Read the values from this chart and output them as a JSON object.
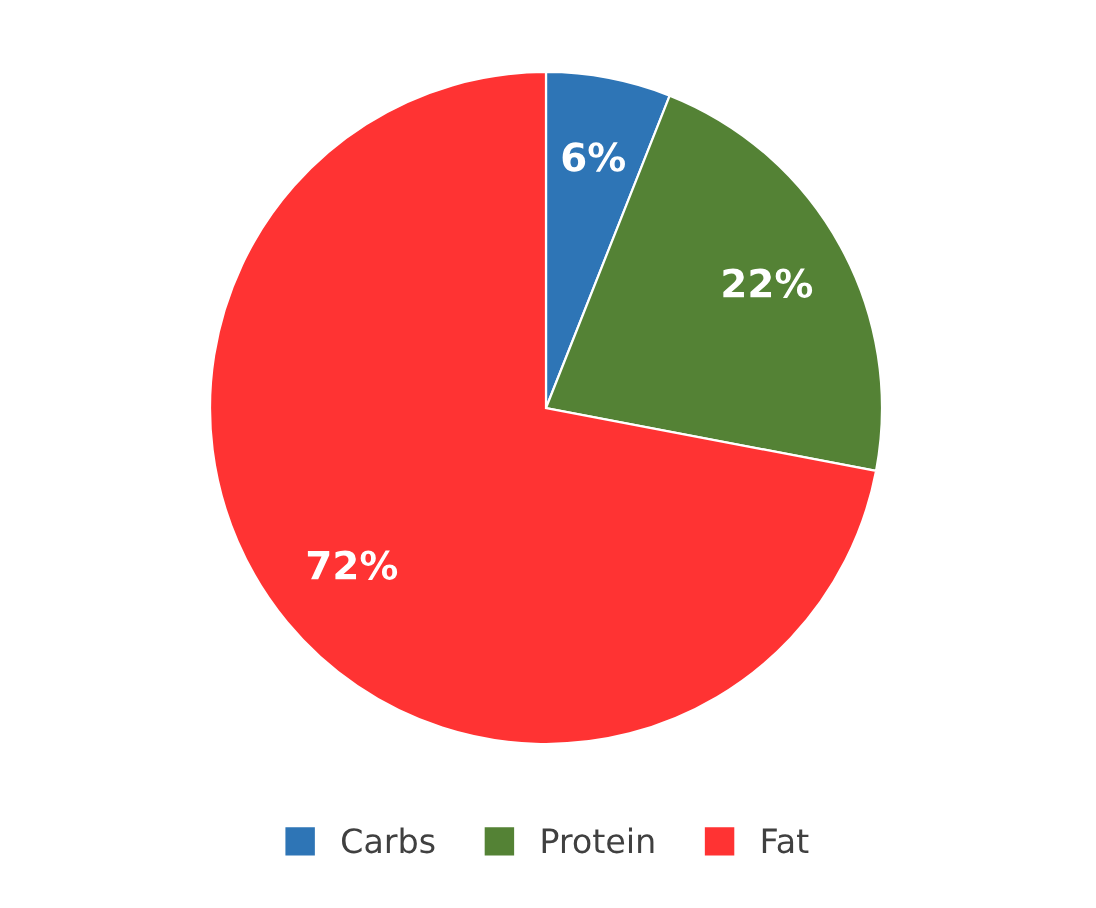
{
  "chart_data": {
    "type": "pie",
    "categories": [
      "Carbs",
      "Protein",
      "Fat"
    ],
    "values": [
      6,
      22,
      72
    ],
    "colors": [
      "#2e75b6",
      "#548235",
      "#ff3333"
    ],
    "value_labels": [
      "6%",
      "22%",
      "72%"
    ],
    "legend": "bottom"
  }
}
